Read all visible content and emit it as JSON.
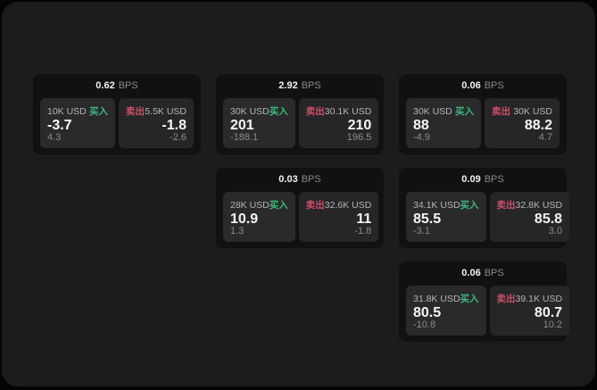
{
  "colors": {
    "buy_green": "#3cba7c",
    "sell_red": "#cf4f68",
    "panel_bg": "#1c1c1e",
    "card_bg": "#111113"
  },
  "labels": {
    "bps_unit": "BPS",
    "buy": "买入",
    "sell": "卖出"
  },
  "cards": [
    {
      "bps": "0.62",
      "grid": {
        "col": 0,
        "row": 0
      },
      "buy": {
        "notional": "10K USD",
        "price": "-3.7",
        "change": "4.3"
      },
      "sell": {
        "notional": "5.5K USD",
        "price": "-1.8",
        "change": "-2.6"
      }
    },
    {
      "bps": "2.92",
      "grid": {
        "col": 1,
        "row": 0
      },
      "buy": {
        "notional": "30K USD",
        "price": "201",
        "change": "-188.1"
      },
      "sell": {
        "notional": "30.1K USD",
        "price": "210",
        "change": "196.5"
      }
    },
    {
      "bps": "0.06",
      "grid": {
        "col": 2,
        "row": 0
      },
      "buy": {
        "notional": "30K USD",
        "price": "88",
        "change": "-4.9"
      },
      "sell": {
        "notional": "30K USD",
        "price": "88.2",
        "change": "4.7"
      }
    },
    {
      "bps": "0.03",
      "grid": {
        "col": 1,
        "row": 1
      },
      "buy": {
        "notional": "28K USD",
        "price": "10.9",
        "change": "1.3"
      },
      "sell": {
        "notional": "32.6K USD",
        "price": "11",
        "change": "-1.8"
      }
    },
    {
      "bps": "0.09",
      "grid": {
        "col": 2,
        "row": 1
      },
      "buy": {
        "notional": "34.1K USD",
        "price": "85.5",
        "change": "-3.1"
      },
      "sell": {
        "notional": "32.8K USD",
        "price": "85.8",
        "change": "3.0"
      }
    },
    {
      "bps": "0.06",
      "grid": {
        "col": 2,
        "row": 2
      },
      "buy": {
        "notional": "31.8K USD",
        "price": "80.5",
        "change": "-10.8"
      },
      "sell": {
        "notional": "39.1K USD",
        "price": "80.7",
        "change": "10.2"
      }
    }
  ]
}
